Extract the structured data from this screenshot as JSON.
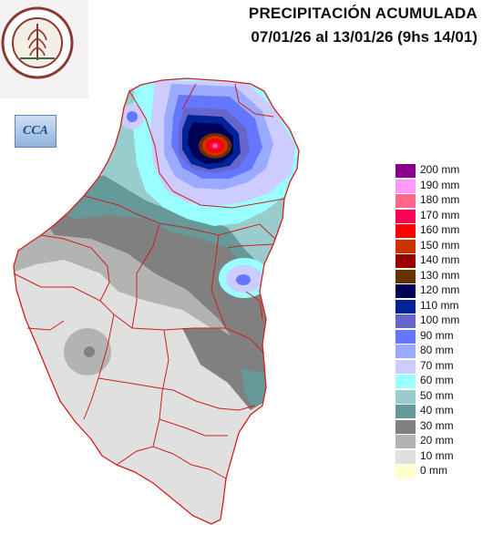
{
  "title": "PRECIPITACIÓN ACUMULADA",
  "dates": "07/01/26 al 13/01/26 (9hs 14/01)",
  "logos": {
    "bolsa": {
      "icon": "bolsa-cereales-entre-rios-seal",
      "text": "BOLSA DE CEREALES DE ENTRE RIOS",
      "year": "1978"
    },
    "cca": {
      "icon": "cca-logo",
      "text": "CCA"
    }
  },
  "legend": [
    {
      "label": "200 mm",
      "color": "#8b008b"
    },
    {
      "label": "190 mm",
      "color": "#ff99ff"
    },
    {
      "label": "180 mm",
      "color": "#ff6688"
    },
    {
      "label": "170 mm",
      "color": "#ff0055"
    },
    {
      "label": "160 mm",
      "color": "#ff0000"
    },
    {
      "label": "150 mm",
      "color": "#cc3300"
    },
    {
      "label": "140 mm",
      "color": "#990000"
    },
    {
      "label": "130 mm",
      "color": "#663300"
    },
    {
      "label": "120 mm",
      "color": "#000055"
    },
    {
      "label": "110 mm",
      "color": "#002299"
    },
    {
      "label": "100 mm",
      "color": "#6666cc"
    },
    {
      "label": "90 mm",
      "color": "#6677ff"
    },
    {
      "label": "80 mm",
      "color": "#99aaff"
    },
    {
      "label": "70 mm",
      "color": "#ccccff"
    },
    {
      "label": "60 mm",
      "color": "#99ffff"
    },
    {
      "label": "50 mm",
      "color": "#99cccc"
    },
    {
      "label": "40 mm",
      "color": "#669999"
    },
    {
      "label": "30 mm",
      "color": "#808080"
    },
    {
      "label": "20 mm",
      "color": "#b3b3b3"
    },
    {
      "label": "10 mm",
      "color": "#e0e0e0"
    },
    {
      "label": "0 mm",
      "color": "#ffffcc"
    }
  ]
}
